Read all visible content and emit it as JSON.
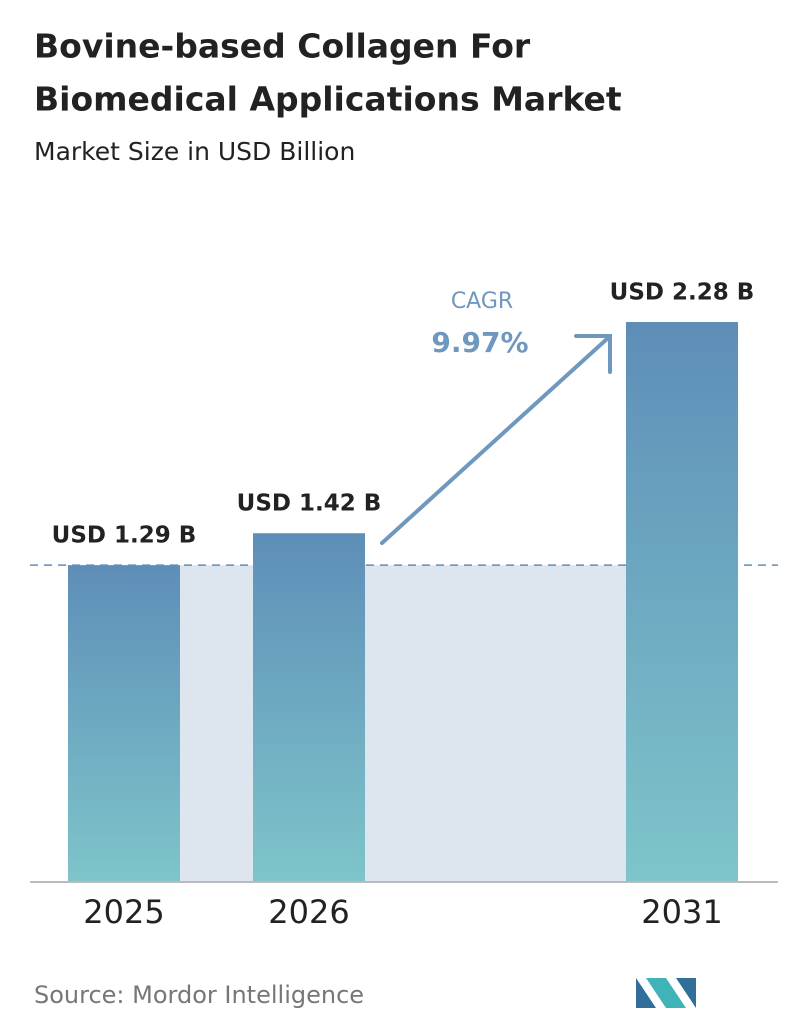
{
  "chart_data": {
    "type": "bar",
    "title": "Bovine-based Collagen For",
    "title_line2": "Biomedical Applications Market",
    "subtitle": "Market Size in USD Billion",
    "categories": [
      "2025",
      "2026",
      "2031"
    ],
    "values": [
      1.29,
      1.42,
      2.28
    ],
    "value_labels": [
      "USD 1.29 B",
      "USD 1.42 B",
      "USD 2.28 B"
    ],
    "gradient": [
      "#5e8eb8",
      "#7ec5ca"
    ],
    "annotation": {
      "label": "CAGR",
      "value": "9.97%"
    },
    "source": "Source: Mordor Intelligence"
  }
}
